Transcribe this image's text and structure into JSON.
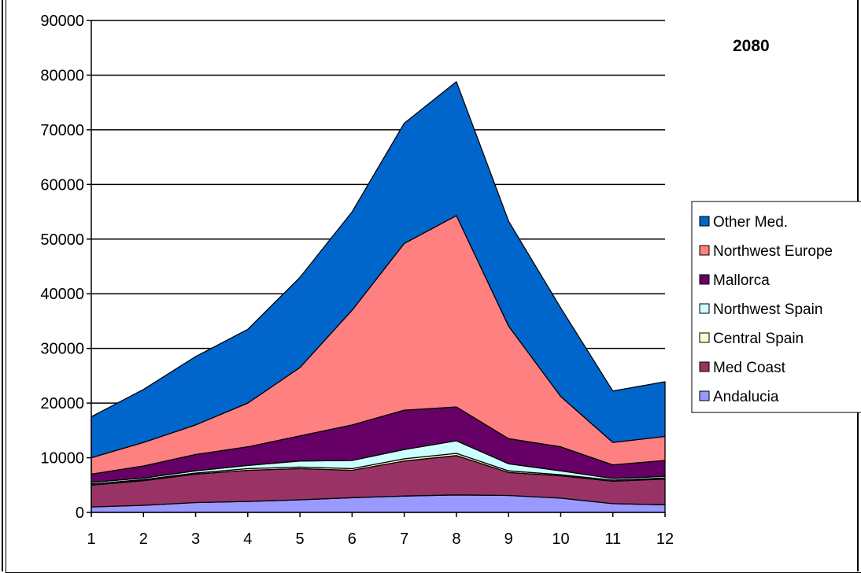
{
  "chart_data": {
    "type": "area",
    "stacked": true,
    "title": "2080",
    "x": [
      1,
      2,
      3,
      4,
      5,
      6,
      7,
      8,
      9,
      10,
      11,
      12
    ],
    "ylim": [
      0,
      90000
    ],
    "yticks": [
      0,
      10000,
      20000,
      30000,
      40000,
      50000,
      60000,
      70000,
      80000,
      90000
    ],
    "grid": true,
    "legend_position": "right",
    "series": [
      {
        "name": "Andalucia",
        "color": "#9999ff",
        "values": [
          1000,
          1300,
          1800,
          2000,
          2300,
          2700,
          3000,
          3200,
          3100,
          2600,
          1600,
          1400
        ]
      },
      {
        "name": "Med Coast",
        "color": "#993366",
        "values": [
          4000,
          4500,
          5200,
          5700,
          5700,
          5000,
          6400,
          7200,
          4200,
          4100,
          4100,
          4700
        ]
      },
      {
        "name": "Central Spain",
        "color": "#ffffcc",
        "values": [
          200,
          200,
          200,
          300,
          300,
          300,
          400,
          400,
          300,
          200,
          200,
          200
        ]
      },
      {
        "name": "Northwest Spain",
        "color": "#ccffff",
        "values": [
          300,
          300,
          400,
          600,
          1100,
          1500,
          1700,
          2300,
          1300,
          700,
          300,
          300
        ]
      },
      {
        "name": "Mallorca",
        "color": "#660066",
        "values": [
          1500,
          2200,
          3000,
          3400,
          4600,
          6500,
          7200,
          6200,
          4600,
          4400,
          2500,
          2900
        ]
      },
      {
        "name": "Northwest Europe",
        "color": "#ff8080",
        "values": [
          3000,
          4300,
          5400,
          8000,
          12500,
          21000,
          30500,
          35000,
          20600,
          9200,
          4100,
          4400
        ]
      },
      {
        "name": "Other Med.",
        "color": "#0066cc",
        "values": [
          7500,
          9700,
          12500,
          13500,
          16500,
          18000,
          22000,
          24500,
          19200,
          16200,
          9400,
          10000
        ]
      }
    ]
  }
}
